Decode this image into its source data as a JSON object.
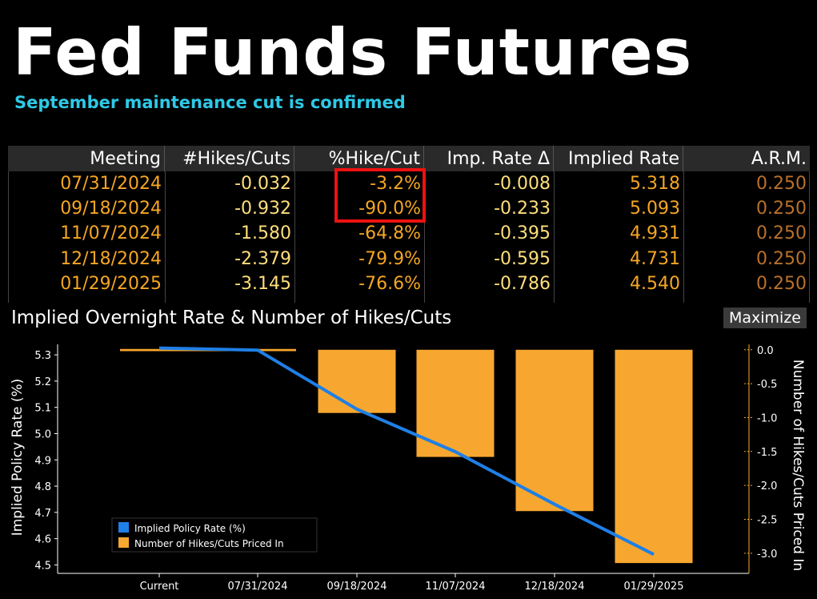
{
  "header": {
    "title": "Fed Funds Futures",
    "subtitle": "September maintenance cut is confirmed"
  },
  "table": {
    "columns": [
      "Meeting",
      "#Hikes/Cuts",
      "%Hike/Cut",
      "Imp. Rate Δ",
      "Implied Rate",
      "A.R.M."
    ],
    "rows": [
      [
        "07/31/2024",
        "-0.032",
        "-3.2%",
        "-0.008",
        "5.318",
        "0.250"
      ],
      [
        "09/18/2024",
        "-0.932",
        "-90.0%",
        "-0.233",
        "5.093",
        "0.250"
      ],
      [
        "11/07/2024",
        "-1.580",
        "-64.8%",
        "-0.395",
        "4.931",
        "0.250"
      ],
      [
        "12/18/2024",
        "-2.379",
        "-79.9%",
        "-0.595",
        "4.731",
        "0.250"
      ],
      [
        "01/29/2025",
        "-3.145",
        "-76.6%",
        "-0.786",
        "4.540",
        "0.250"
      ]
    ]
  },
  "chart_header": {
    "title": "Implied Overnight Rate & Number of Hikes/Cuts",
    "maximize_label": "Maximize"
  },
  "chart_data": {
    "type": "bar",
    "title": "Implied Overnight Rate & Number of Hikes/Cuts",
    "categories": [
      "Current",
      "07/31/2024",
      "09/18/2024",
      "11/07/2024",
      "12/18/2024",
      "01/29/2025"
    ],
    "series": [
      {
        "name": "Implied Policy Rate (%)",
        "type": "line",
        "axis": "left",
        "color": "#1f7fe6",
        "values": [
          5.326,
          5.318,
          5.093,
          4.931,
          4.731,
          4.54
        ]
      },
      {
        "name": "Number of Hikes/Cuts Priced In",
        "type": "bar",
        "axis": "right",
        "color": "#f7a72f",
        "values": [
          null,
          -0.032,
          -0.932,
          -1.58,
          -2.379,
          -3.145
        ]
      }
    ],
    "ylabel": "Implied Policy Rate (%)",
    "ylabel_right": "Number of Hikes/Cuts Priced In",
    "ylim": [
      4.48,
      5.34
    ],
    "yticks": [
      "5.3",
      "5.2",
      "5.1",
      "5.0",
      "4.9",
      "4.8",
      "4.7",
      "4.6",
      "4.5"
    ],
    "ylim_right": [
      -3.25,
      0.08
    ],
    "yticks_right": [
      "0.0",
      "-0.5",
      "-1.0",
      "-1.5",
      "-2.0",
      "-2.5",
      "-3.0"
    ],
    "grid": false,
    "legend_position": "bottom-left"
  }
}
